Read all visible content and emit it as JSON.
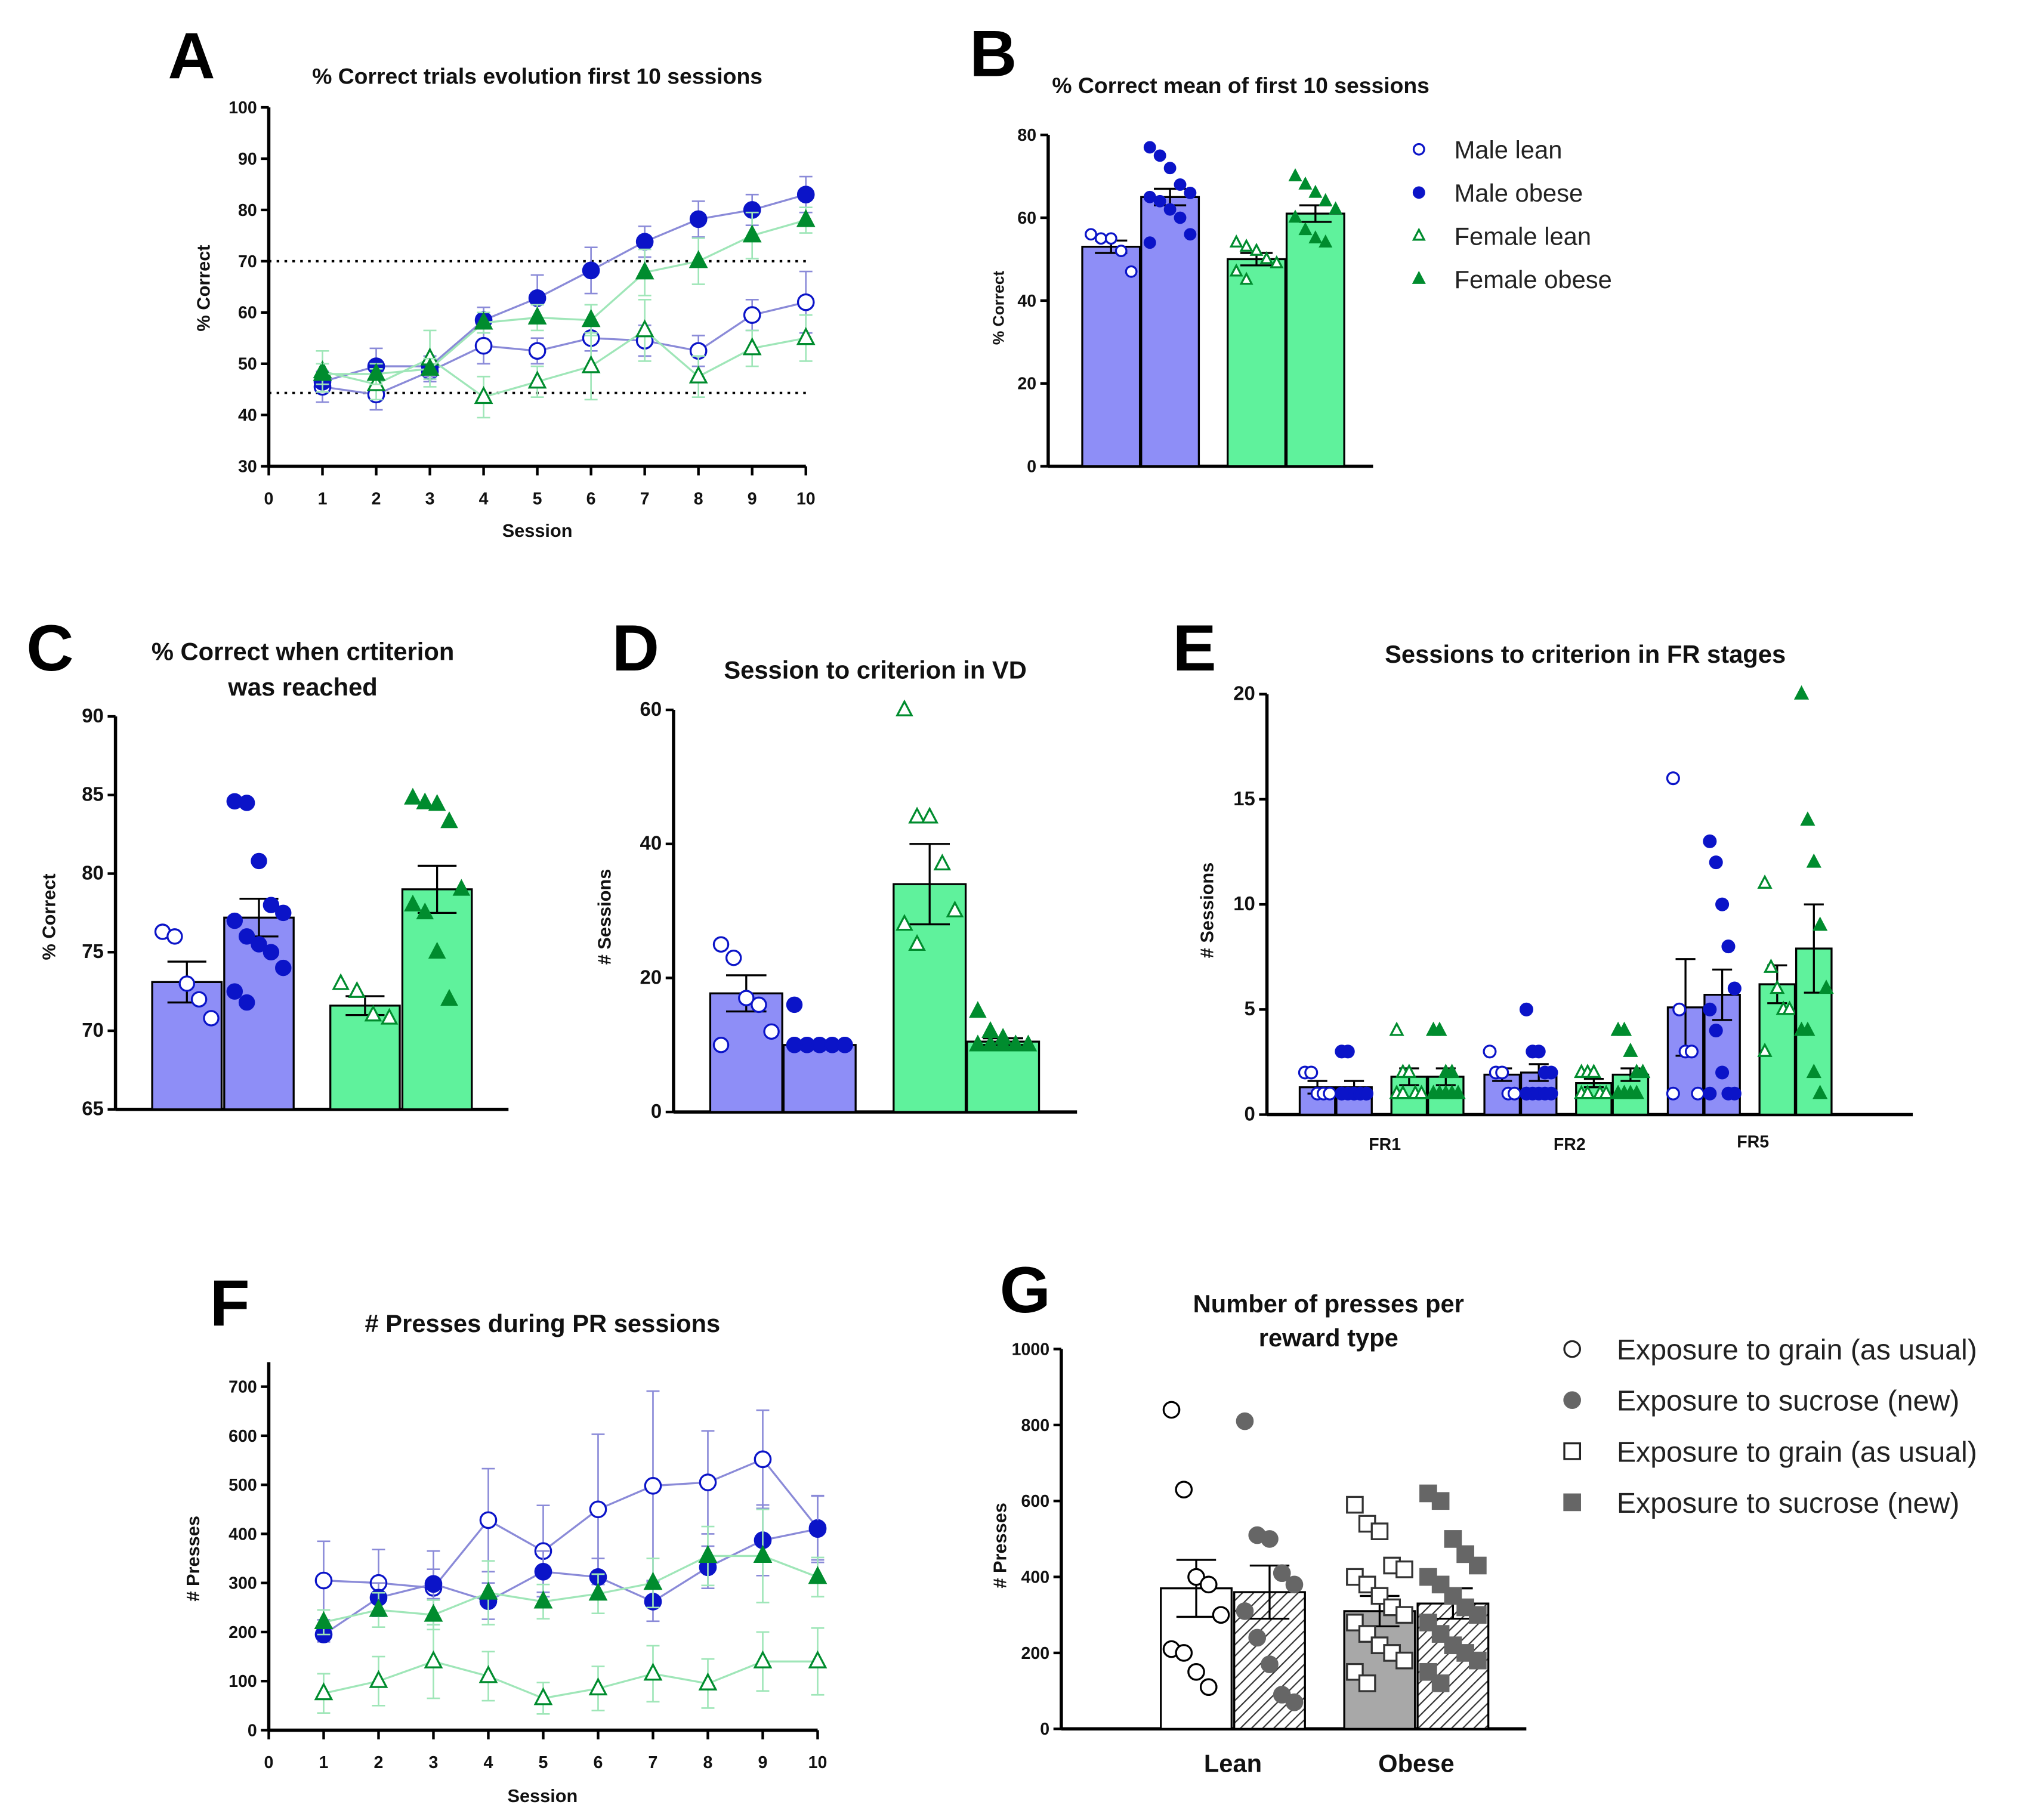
{
  "colors": {
    "blue_marker": "#0b14c8",
    "blue_bar": "#8e8ef7",
    "blue_line": "#8a8ad8",
    "green_marker": "#008c2e",
    "green_bar": "#5ff29c",
    "green_line": "#9fe6b8",
    "gray_marker": "#666666",
    "gray_bar": "#a8a8a8"
  },
  "panels": {
    "A": "A",
    "B": "B",
    "C": "C",
    "D": "D",
    "E": "E",
    "F": "F",
    "G": "G"
  },
  "chart_data": [
    {
      "id": "A",
      "type": "line",
      "title": "% Correct trials evolution first 10 sessions",
      "xlabel": "Session",
      "ylabel": "% Correct",
      "xlim": [
        0,
        10
      ],
      "ylim": [
        30,
        100
      ],
      "xticks": [
        0,
        1,
        2,
        3,
        4,
        5,
        6,
        7,
        8,
        9,
        10
      ],
      "yticks": [
        30,
        40,
        50,
        60,
        70,
        80,
        90,
        100
      ],
      "reference_lines": [
        70,
        44.3
      ],
      "x": [
        1,
        2,
        3,
        4,
        5,
        6,
        7,
        8,
        9,
        10
      ],
      "series": [
        {
          "name": "Male lean",
          "marker": "circle-open",
          "values": [
            45.5,
            44,
            48.5,
            53.5,
            52.5,
            55,
            54.5,
            52.5,
            59.5,
            62
          ],
          "sem": [
            3,
            3,
            2,
            3.5,
            2.5,
            2.5,
            3,
            3,
            3,
            6
          ]
        },
        {
          "name": "Male obese",
          "marker": "circle-filled",
          "values": [
            46.5,
            49.5,
            49.5,
            58.5,
            62.8,
            68.2,
            73.8,
            78.2,
            80,
            83
          ],
          "sem": [
            2,
            3.5,
            2,
            2.5,
            4.5,
            4.5,
            3,
            3.5,
            3,
            3.5
          ]
        },
        {
          "name": "Female lean",
          "marker": "triangle-open",
          "values": [
            48.5,
            46,
            51,
            43.5,
            46.5,
            49.5,
            56.5,
            47.5,
            53,
            55
          ],
          "sem": [
            4,
            3,
            5.5,
            4,
            3,
            6.5,
            6,
            4,
            3.5,
            4.5
          ]
        },
        {
          "name": "Female obese",
          "marker": "triangle-filled",
          "values": [
            48,
            48,
            49,
            58,
            59,
            58.5,
            67.8,
            70,
            75,
            78
          ],
          "sem": [
            2,
            2,
            2,
            2,
            2.5,
            3,
            4.5,
            4.5,
            4.5,
            2.5
          ]
        }
      ]
    },
    {
      "id": "B",
      "type": "bar",
      "title": "% Correct mean of first 10 sessions",
      "ylabel": "% Correct",
      "ylim": [
        0,
        80
      ],
      "yticks": [
        0,
        20,
        40,
        60,
        80
      ],
      "legend_position": "right",
      "legend": [
        "Male lean",
        "Male obese",
        "Female lean",
        "Female obese"
      ],
      "bars": [
        {
          "name": "Male lean",
          "value": 53,
          "sem": 1.5,
          "points": [
            56,
            55,
            55,
            52,
            47
          ]
        },
        {
          "name": "Male obese",
          "value": 65,
          "sem": 2,
          "points": [
            77,
            75,
            72,
            68,
            66,
            65,
            64,
            62,
            60,
            56,
            54
          ]
        },
        {
          "name": "Female lean",
          "value": 50,
          "sem": 1.5,
          "points": [
            54,
            53,
            52,
            50,
            49,
            47,
            45
          ]
        },
        {
          "name": "Female obese",
          "value": 61,
          "sem": 2,
          "points": [
            70,
            68,
            66,
            64,
            62,
            60,
            57,
            55,
            54
          ]
        }
      ]
    },
    {
      "id": "C",
      "type": "bar",
      "title": [
        "% Correct when crtiterion",
        "was reached"
      ],
      "ylabel": "% Correct",
      "ylim": [
        65,
        90
      ],
      "yticks": [
        65,
        70,
        75,
        80,
        85,
        90
      ],
      "bars": [
        {
          "name": "Male lean",
          "value": 73.1,
          "sem": 1.3,
          "points": [
            76.3,
            76,
            73,
            72,
            70.8
          ]
        },
        {
          "name": "Male obese",
          "value": 77.2,
          "sem": 1.2,
          "points": [
            84.6,
            84.5,
            80.8,
            78,
            77.5,
            77,
            76,
            75.5,
            75,
            74,
            72.5,
            71.8
          ]
        },
        {
          "name": "Female lean",
          "value": 71.6,
          "sem": 0.6,
          "points": [
            73,
            72.5,
            71,
            70.8
          ]
        },
        {
          "name": "Female obese",
          "value": 79,
          "sem": 1.5,
          "points": [
            84.8,
            84.5,
            84.4,
            83.3,
            79,
            78,
            77.5,
            75,
            72
          ]
        }
      ]
    },
    {
      "id": "D",
      "type": "bar",
      "title": "Session to criterion in VD",
      "ylabel": "# Sessions",
      "ylim": [
        0,
        60
      ],
      "yticks": [
        0,
        20,
        40,
        60
      ],
      "bars": [
        {
          "name": "Male lean",
          "value": 17.7,
          "sem": 2.7,
          "points": [
            25,
            23,
            17,
            16,
            12,
            10
          ]
        },
        {
          "name": "Male obese",
          "value": 10,
          "sem": 0.6,
          "points": [
            16,
            10,
            10,
            10,
            10,
            10,
            10,
            10,
            10,
            10,
            10
          ]
        },
        {
          "name": "Female lean",
          "value": 34,
          "sem": 6,
          "points": [
            60,
            44,
            44,
            37,
            30,
            28,
            25
          ]
        },
        {
          "name": "Female obese",
          "value": 10.5,
          "sem": 0.5,
          "points": [
            15,
            12,
            11,
            10,
            10,
            10,
            10,
            10,
            10
          ]
        }
      ]
    },
    {
      "id": "E",
      "type": "bar",
      "title": "Sessions to criterion in FR stages",
      "ylabel": "# Sessions",
      "ylim": [
        0,
        20
      ],
      "yticks": [
        0,
        5,
        10,
        15,
        20
      ],
      "categories": [
        "FR1",
        "FR2",
        "FR5"
      ],
      "groups": [
        [
          {
            "value": 1.3,
            "sem": 0.3,
            "points": [
              2,
              2,
              1,
              1,
              1
            ]
          },
          {
            "value": 1.3,
            "sem": 0.3,
            "points": [
              3,
              3,
              1,
              1,
              1,
              1,
              1,
              1,
              1,
              1,
              1
            ]
          },
          {
            "value": 1.8,
            "sem": 0.4,
            "points": [
              4,
              2,
              2,
              1,
              1,
              1,
              1
            ]
          },
          {
            "value": 1.8,
            "sem": 0.4,
            "points": [
              4,
              4,
              2,
              2,
              1,
              1,
              1,
              1,
              1
            ]
          }
        ],
        [
          {
            "value": 1.9,
            "sem": 0.3,
            "points": [
              3,
              2,
              2,
              1,
              1
            ]
          },
          {
            "value": 2,
            "sem": 0.4,
            "points": [
              5,
              3,
              3,
              2,
              2,
              1,
              1,
              1,
              1,
              1,
              1
            ]
          },
          {
            "value": 1.5,
            "sem": 0.2,
            "points": [
              2,
              2,
              2,
              1,
              1,
              1,
              1
            ]
          },
          {
            "value": 1.9,
            "sem": 0.3,
            "points": [
              4,
              4,
              3,
              2,
              2,
              1,
              1,
              1,
              1
            ]
          }
        ],
        [
          {
            "value": 5.1,
            "sem": 2.3,
            "points": [
              16,
              5,
              3,
              3,
              1,
              1
            ]
          },
          {
            "value": 5.7,
            "sem": 1.2,
            "points": [
              13,
              12,
              10,
              8,
              6,
              5,
              4,
              2,
              1,
              1,
              1
            ]
          },
          {
            "value": 6.2,
            "sem": 0.9,
            "points": [
              11,
              7,
              6,
              5,
              5,
              3
            ]
          },
          {
            "value": 7.9,
            "sem": 2.1,
            "points": [
              20,
              14,
              12,
              9,
              6,
              4,
              4,
              2,
              1
            ]
          }
        ]
      ]
    },
    {
      "id": "F",
      "type": "line",
      "title": "# Presses during PR sessions",
      "xlabel": "Session",
      "ylabel": "# Presses",
      "xlim": [
        0,
        10
      ],
      "ylim": [
        0,
        700
      ],
      "xticks": [
        0,
        1,
        2,
        3,
        4,
        5,
        6,
        7,
        8,
        9,
        10
      ],
      "yticks": [
        0,
        100,
        200,
        300,
        400,
        500,
        600,
        700
      ],
      "x": [
        1,
        2,
        3,
        4,
        5,
        6,
        7,
        8,
        9,
        10
      ],
      "series": [
        {
          "name": "Male lean",
          "marker": "circle-open",
          "values": [
            305,
            300,
            290,
            428,
            365,
            450,
            498,
            505,
            552,
            412
          ],
          "sem": [
            80,
            68,
            75,
            105,
            93,
            153,
            193,
            105,
            100,
            65
          ]
        },
        {
          "name": "Male obese",
          "marker": "circle-filled",
          "values": [
            195,
            270,
            298,
            263,
            323,
            312,
            262,
            332,
            387,
            410
          ],
          "sem": [
            15,
            30,
            30,
            37,
            42,
            38,
            40,
            43,
            72,
            68
          ]
        },
        {
          "name": "Female lean",
          "marker": "triangle-open",
          "values": [
            75,
            100,
            140,
            110,
            65,
            85,
            115,
            95,
            140,
            140
          ],
          "sem": [
            40,
            50,
            75,
            50,
            32,
            45,
            57,
            50,
            60,
            68
          ]
        },
        {
          "name": "Female obese",
          "marker": "triangle-filled",
          "values": [
            220,
            245,
            235,
            280,
            262,
            278,
            300,
            355,
            355,
            312
          ],
          "sem": [
            25,
            35,
            30,
            65,
            35,
            40,
            50,
            60,
            95,
            40
          ]
        }
      ]
    },
    {
      "id": "G",
      "type": "bar",
      "title": [
        "Number of presses per",
        "reward type"
      ],
      "ylabel": "# Presses",
      "ylim": [
        0,
        1000
      ],
      "yticks": [
        0,
        200,
        400,
        600,
        800,
        1000
      ],
      "categories": [
        "Lean",
        "Obese"
      ],
      "legend_position": "right",
      "legend": [
        "Exposure to grain (as usual)",
        "Exposure to sucrose (new)",
        "Exposure to grain (as usual)",
        "Exposure to sucrose (new)"
      ],
      "groups": [
        [
          {
            "value": 370,
            "sem": 75,
            "points": [
              840,
              630,
              400,
              380,
              300,
              210,
              200,
              150,
              110
            ]
          },
          {
            "value": 360,
            "sem": 70,
            "points": [
              810,
              510,
              500,
              410,
              380,
              310,
              240,
              170,
              90,
              70
            ]
          }
        ],
        [
          {
            "value": 310,
            "sem": 40,
            "points": [
              590,
              540,
              520,
              430,
              420,
              400,
              380,
              350,
              320,
              300,
              280,
              250,
              220,
              200,
              180,
              150,
              120
            ]
          },
          {
            "value": 330,
            "sem": 40,
            "points": [
              620,
              600,
              500,
              460,
              430,
              400,
              380,
              350,
              320,
              300,
              280,
              250,
              220,
              200,
              180,
              150,
              120
            ]
          }
        ]
      ]
    }
  ]
}
